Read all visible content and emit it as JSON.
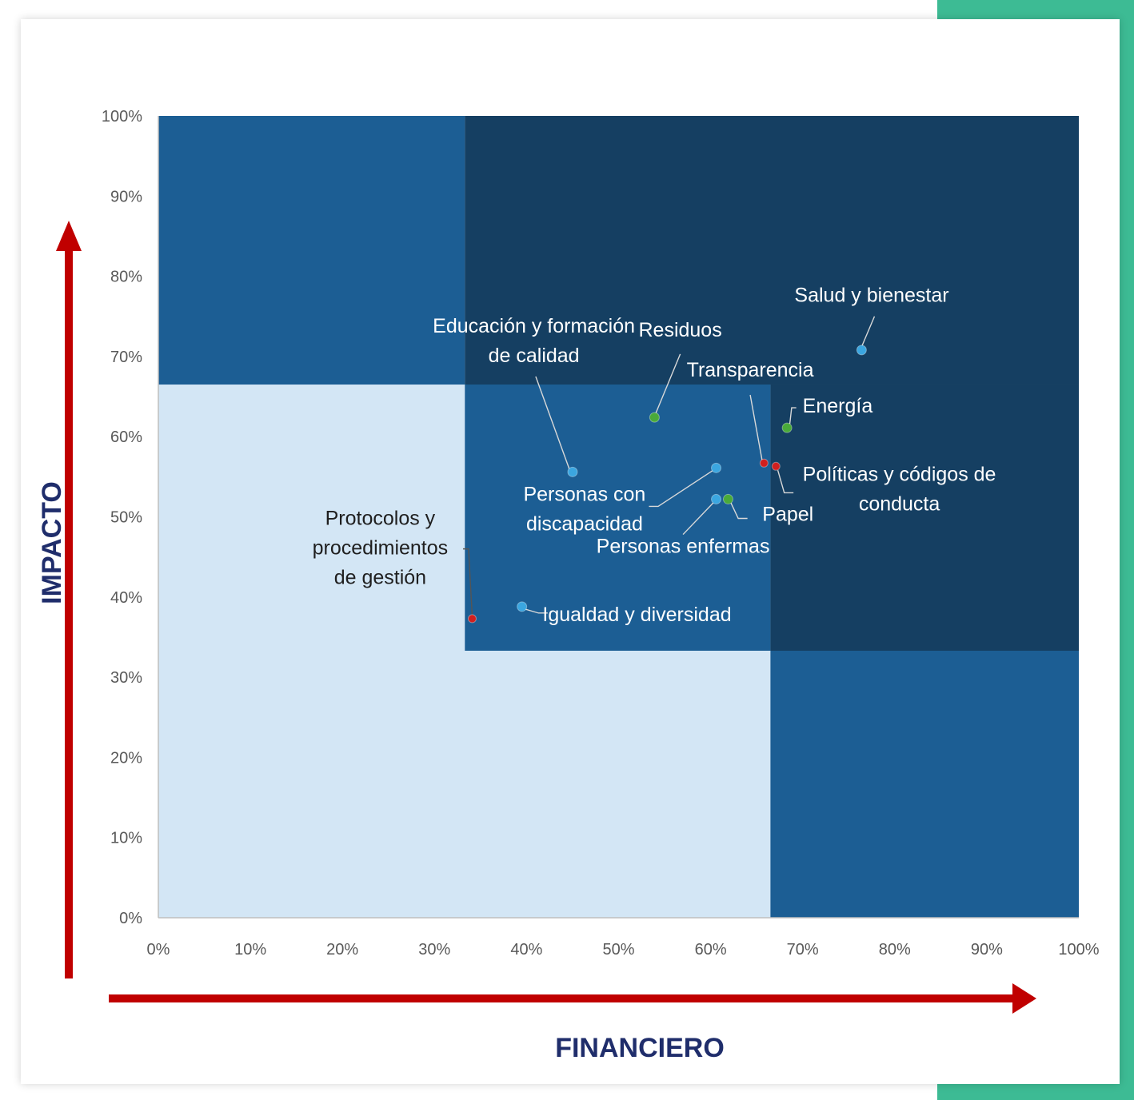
{
  "colors": {
    "accent": "#3dbb94",
    "quadrant_light": "#d3e6f5",
    "quadrant_mid": "#1c5e94",
    "quadrant_dark": "#153f62",
    "arrow": "#c00000",
    "axis_title": "#1f2d6b",
    "point_blue": "#3ba6e0",
    "point_green": "#4aaa3a",
    "point_red": "#d0201f"
  },
  "chart_data": {
    "type": "scatter",
    "title": "",
    "xlabel": "FINANCIERO",
    "ylabel": "IMPACTO",
    "xlim": [
      0,
      100
    ],
    "ylim": [
      0,
      100
    ],
    "x_ticks": [
      "0%",
      "10%",
      "20%",
      "30%",
      "40%",
      "50%",
      "60%",
      "70%",
      "80%",
      "90%",
      "100%"
    ],
    "y_ticks": [
      "0%",
      "10%",
      "20%",
      "30%",
      "40%",
      "50%",
      "60%",
      "70%",
      "80%",
      "90%",
      "100%"
    ],
    "grid": false,
    "regions": [
      {
        "name": "bajo",
        "color": "quadrant_light",
        "x": [
          0,
          100
        ],
        "y": [
          0,
          100
        ]
      },
      {
        "name": "medio-superior",
        "color": "quadrant_mid",
        "x": [
          0,
          33.3
        ],
        "y": [
          66.5,
          100
        ]
      },
      {
        "name": "medio-centro",
        "color": "quadrant_mid",
        "x": [
          33.3,
          66.5
        ],
        "y": [
          33.3,
          66.5
        ]
      },
      {
        "name": "medio-derecho",
        "color": "quadrant_mid",
        "x": [
          66.5,
          100
        ],
        "y": [
          0,
          33.3
        ]
      },
      {
        "name": "alto-superior",
        "color": "quadrant_dark",
        "x": [
          33.3,
          100
        ],
        "y": [
          66.5,
          100
        ]
      },
      {
        "name": "alto-derecho",
        "color": "quadrant_dark",
        "x": [
          66.5,
          100
        ],
        "y": [
          33.3,
          66.5
        ]
      }
    ],
    "points": [
      {
        "lines": [
          "Salud y bienestar"
        ],
        "x": 76.4,
        "y": 70.8,
        "color": "point_blue",
        "label_x": 77.5,
        "label_y": 76.8,
        "label_dark": false,
        "leader": [
          [
            77.8,
            75.0
          ],
          [
            76.4,
            71.2
          ]
        ]
      },
      {
        "lines": [
          "Educación y formación",
          "de calidad"
        ],
        "x": 45.0,
        "y": 55.6,
        "color": "point_blue",
        "label_x": 40.8,
        "label_y": 73.0,
        "label_dark": false,
        "leader": [
          [
            41.0,
            67.5
          ],
          [
            44.7,
            55.8
          ]
        ]
      },
      {
        "lines": [
          "Residuos"
        ],
        "x": 53.9,
        "y": 62.4,
        "color": "point_green",
        "label_x": 56.7,
        "label_y": 72.5,
        "label_dark": false,
        "leader": [
          [
            56.7,
            70.3
          ],
          [
            54.0,
            62.8
          ]
        ]
      },
      {
        "lines": [
          "Transparencia"
        ],
        "x": 65.8,
        "y": 56.7,
        "color": "point_red",
        "label_x": 64.3,
        "label_y": 67.5,
        "label_dark": false,
        "leader": [
          [
            64.3,
            65.2
          ],
          [
            65.6,
            57.0
          ]
        ]
      },
      {
        "lines": [
          "Energía"
        ],
        "x": 68.3,
        "y": 61.1,
        "color": "point_green",
        "label_x": 73.8,
        "label_y": 63.0,
        "label_dark": false,
        "leader": [
          [
            69.3,
            63.6
          ],
          [
            68.8,
            63.6
          ],
          [
            68.6,
            61.6
          ]
        ]
      },
      {
        "lines": [
          "Políticas y códigos de",
          "conducta"
        ],
        "x": 67.1,
        "y": 56.3,
        "color": "point_red",
        "label_x": 80.5,
        "label_y": 54.5,
        "label_dark": false,
        "leader": [
          [
            69.0,
            53.0
          ],
          [
            68.0,
            53.0
          ],
          [
            67.3,
            55.8
          ]
        ]
      },
      {
        "lines": [
          "Personas con",
          "discapacidad"
        ],
        "x": 60.6,
        "y": 56.1,
        "color": "point_blue",
        "label_x": 46.3,
        "label_y": 52.0,
        "label_dark": false,
        "leader": [
          [
            53.3,
            51.3
          ],
          [
            54.3,
            51.3
          ],
          [
            60.4,
            55.9
          ]
        ]
      },
      {
        "lines": [
          "Papel"
        ],
        "x": 61.9,
        "y": 52.2,
        "color": "point_green",
        "label_x": 68.4,
        "label_y": 49.5,
        "label_dark": false,
        "leader": [
          [
            64.0,
            49.8
          ],
          [
            63.0,
            49.8
          ],
          [
            62.1,
            52.0
          ]
        ]
      },
      {
        "lines": [
          "Personas enfermas"
        ],
        "x": 60.6,
        "y": 52.2,
        "color": "point_blue",
        "label_x": 57.0,
        "label_y": 45.5,
        "label_dark": false,
        "leader": [
          [
            57.0,
            47.8
          ],
          [
            60.5,
            52.0
          ]
        ]
      },
      {
        "lines": [
          "Protocolos y",
          "procedimientos",
          "de gestión"
        ],
        "x": 34.1,
        "y": 37.3,
        "color": "point_red",
        "label_x": 24.1,
        "label_y": 49.0,
        "label_dark": true,
        "leader": [
          [
            33.1,
            46.0
          ],
          [
            33.7,
            46.0
          ],
          [
            34.1,
            37.6
          ]
        ]
      },
      {
        "lines": [
          "Igualdad y diversidad"
        ],
        "x": 39.5,
        "y": 38.8,
        "color": "point_blue",
        "label_x": 52.0,
        "label_y": 37.0,
        "label_dark": false,
        "leader": [
          [
            42.3,
            38.0
          ],
          [
            41.3,
            38.0
          ],
          [
            39.8,
            38.5
          ]
        ]
      }
    ]
  }
}
